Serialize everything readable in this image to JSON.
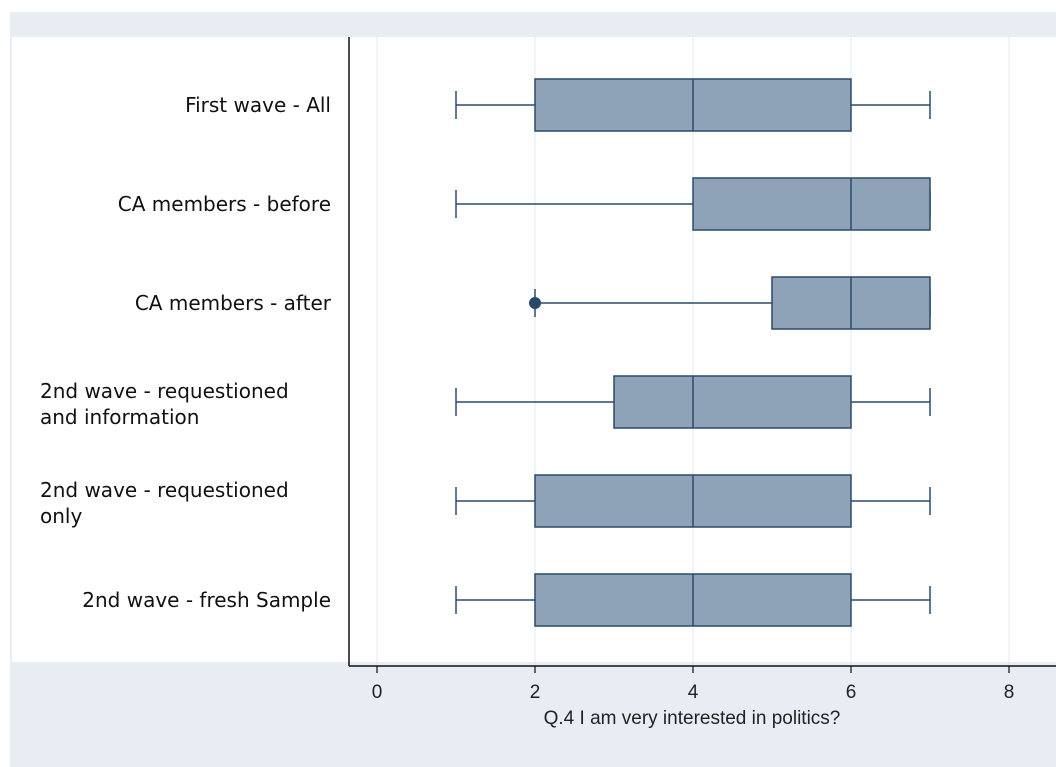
{
  "chart_data": {
    "type": "boxplot",
    "orientation": "horizontal",
    "xlabel": "Q.4 I am very interested in politics?",
    "xlim": [
      -0.5,
      8.3
    ],
    "xticks": [
      0,
      2,
      4,
      6,
      8
    ],
    "xtick_labels": [
      "0",
      "2",
      "4",
      "6",
      "8"
    ],
    "grid": "vertical",
    "legend": "none",
    "colors": {
      "box_fill": "#8ea3b8",
      "box_stroke": "#2b4a6b",
      "grid": "#e3e8ee",
      "frame_bg": "#e7edf2"
    },
    "categories": [
      "First wave - All",
      "CA members  - before",
      "CA members - after",
      "2nd wave - requestioned and information",
      "2nd wave - requestioned only",
      "2nd wave  - fresh Sample"
    ],
    "boxes": [
      {
        "label_lines": [
          "First wave - All"
        ],
        "whisker_low": 1,
        "q1": 2,
        "median": 4,
        "q3": 6,
        "whisker_high": 7,
        "outliers": []
      },
      {
        "label_lines": [
          "CA members  - before"
        ],
        "whisker_low": 1,
        "q1": 4,
        "median": 6,
        "q3": 7,
        "whisker_high": 7,
        "outliers": []
      },
      {
        "label_lines": [
          "CA members - after"
        ],
        "whisker_low": 2,
        "q1": 5,
        "median": 6,
        "q3": 7,
        "whisker_high": 7,
        "outliers": [
          2
        ]
      },
      {
        "label_lines": [
          "2nd wave - requestioned",
          "and information"
        ],
        "whisker_low": 1,
        "q1": 3,
        "median": 4,
        "q3": 6,
        "whisker_high": 7,
        "outliers": []
      },
      {
        "label_lines": [
          "2nd wave - requestioned",
          "only"
        ],
        "whisker_low": 1,
        "q1": 2,
        "median": 4,
        "q3": 6,
        "whisker_high": 7,
        "outliers": []
      },
      {
        "label_lines": [
          "2nd wave  - fresh Sample"
        ],
        "whisker_low": 1,
        "q1": 2,
        "median": 4,
        "q3": 6,
        "whisker_high": 7,
        "outliers": []
      }
    ]
  }
}
